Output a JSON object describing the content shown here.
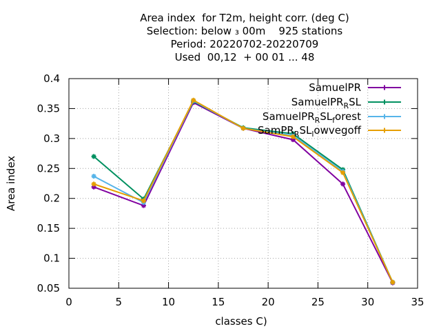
{
  "chart_data": {
    "type": "line",
    "title_lines": [
      "Area index  for T2m, height corr. (deg C)",
      "Selection: below ₃ 00m    925 stations",
      "Period: 20220702-20220709",
      "Used  00,12  + 00 01 ... 48"
    ],
    "xlabel": "classes C)",
    "ylabel": "Area index",
    "xlim": [
      0,
      35
    ],
    "ylim": [
      0.05,
      0.4
    ],
    "xticks": [
      0,
      5,
      10,
      15,
      20,
      25,
      30,
      35
    ],
    "xtick_labels": [
      "0",
      "5",
      "10",
      "15",
      "20",
      "25",
      "30",
      "35"
    ],
    "yticks": [
      0.05,
      0.1,
      0.15,
      0.2,
      0.25,
      0.3,
      0.35,
      0.4
    ],
    "ytick_labels": [
      "0.05",
      "0.1",
      "0.15",
      "0.2",
      "0.25",
      "0.3",
      "0.35",
      "0.4"
    ],
    "grid": true,
    "legend_position": "top-right",
    "x": [
      2.5,
      7.5,
      12.5,
      17.5,
      22.5,
      27.5,
      32.5
    ],
    "series": [
      {
        "name": "SamuelPR",
        "color": "#8000a0",
        "values": [
          0.219,
          0.188,
          0.36,
          0.317,
          0.298,
          0.224,
          0.059
        ]
      },
      {
        "name": "SamuelPRₘSL",
        "legend_main": "SamuelPR",
        "legend_sub": "R",
        "legend_rest": "SL",
        "color": "#009060",
        "values": [
          0.27,
          0.199,
          0.362,
          0.318,
          0.308,
          0.248,
          0.06
        ]
      },
      {
        "name": "SamuelPR_RSL_forest",
        "legend_main": "SamuelPR",
        "legend_sub": "R",
        "legend_rest": "SL",
        "legend_sub2": "f",
        "legend_rest2": "orest",
        "color": "#56b4e9",
        "values": [
          0.237,
          0.193,
          0.363,
          0.317,
          0.305,
          0.245,
          0.06
        ]
      },
      {
        "name": "SamPR_RSL_lowvegoff",
        "legend_main": "SamPR",
        "legend_sub": "R",
        "legend_rest": "SL",
        "legend_sub2": "l",
        "legend_rest2": "owvegoff",
        "color": "#e69f00",
        "values": [
          0.224,
          0.196,
          0.364,
          0.317,
          0.303,
          0.243,
          0.06
        ]
      }
    ]
  }
}
